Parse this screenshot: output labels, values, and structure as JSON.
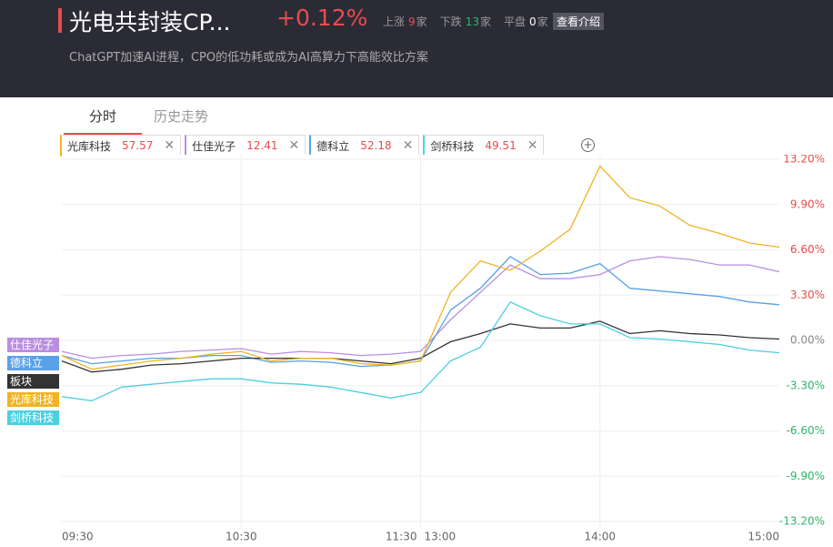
{
  "header": {
    "title": "光电共封装CP...",
    "change": "+0.12%",
    "stats": [
      {
        "label": "上涨",
        "count": 9,
        "unit": "家",
        "color": "#e84c4c"
      },
      {
        "label": "下跌",
        "count": 13,
        "unit": "家",
        "color": "#2fb36a"
      },
      {
        "label": "平盘",
        "count": 0,
        "unit": "家",
        "color": "#ffffff"
      }
    ],
    "button": "查看介绍",
    "subtitle": "ChatGPT加速AI进程，CPO的低功耗或成为AI高算力下高能效比方案"
  },
  "tabs": [
    "分时",
    "历史走势"
  ],
  "stock_tabs": [
    {
      "name": "光库科技",
      "price": "57.57"
    },
    {
      "name": "仕佳光子",
      "price": "12.41"
    },
    {
      "name": "德科立",
      "price": "52.18"
    },
    {
      "name": "剑桥科技",
      "price": "49.51"
    }
  ],
  "chart_data": {
    "type": "line",
    "x": [
      "09:30",
      "09:40",
      "09:50",
      "10:00",
      "10:10",
      "10:20",
      "10:30",
      "10:40",
      "10:50",
      "11:00",
      "11:10",
      "11:20",
      "11:30",
      "13:10",
      "13:20",
      "13:30",
      "13:40",
      "13:50",
      "14:00",
      "14:10",
      "14:20",
      "14:30",
      "14:40",
      "14:50",
      "15:00"
    ],
    "series": [
      {
        "name": "仕佳光子",
        "color": "#b98ee0",
        "values": [
          -0.8,
          -1.3,
          -1.1,
          -1.0,
          -0.8,
          -0.7,
          -0.6,
          -1.0,
          -0.8,
          -0.9,
          -1.1,
          -1.0,
          -0.8,
          1.5,
          3.5,
          5.5,
          4.5,
          4.5,
          4.8,
          5.8,
          6.1,
          5.9,
          5.5,
          5.5,
          5.0
        ]
      },
      {
        "name": "德科立",
        "color": "#5aa0e6",
        "values": [
          -1.1,
          -1.7,
          -1.5,
          -1.3,
          -1.3,
          -1.1,
          -1.1,
          -1.6,
          -1.5,
          -1.6,
          -1.9,
          -1.8,
          -1.5,
          2.2,
          3.8,
          6.1,
          4.8,
          4.9,
          5.6,
          3.8,
          3.6,
          3.4,
          3.2,
          2.8,
          2.6
        ]
      },
      {
        "name": "板块",
        "color": "#333333",
        "values": [
          -1.5,
          -2.3,
          -2.1,
          -1.8,
          -1.7,
          -1.5,
          -1.3,
          -1.3,
          -1.3,
          -1.3,
          -1.5,
          -1.7,
          -1.3,
          -0.1,
          0.5,
          1.2,
          0.9,
          0.9,
          1.4,
          0.5,
          0.7,
          0.5,
          0.4,
          0.2,
          0.1
        ]
      },
      {
        "name": "光库科技",
        "color": "#f0b323",
        "values": [
          -1.1,
          -2.1,
          -1.8,
          -1.5,
          -1.3,
          -1.0,
          -0.8,
          -1.5,
          -1.3,
          -1.3,
          -1.7,
          -1.8,
          -1.5,
          3.5,
          5.8,
          5.1,
          6.5,
          8.1,
          12.7,
          10.4,
          9.8,
          8.4,
          7.8,
          7.1,
          6.8
        ]
      },
      {
        "name": "剑桥科技",
        "color": "#4ccfe0",
        "values": [
          -4.1,
          -4.4,
          -3.4,
          -3.2,
          -3.0,
          -2.8,
          -2.8,
          -3.1,
          -3.2,
          -3.4,
          -3.8,
          -4.2,
          -3.8,
          -1.5,
          -0.5,
          2.8,
          1.8,
          1.2,
          1.2,
          0.2,
          0.1,
          -0.1,
          -0.3,
          -0.7,
          -0.9
        ]
      }
    ],
    "ylim": [
      -13.2,
      13.2
    ],
    "yticks": [
      {
        "value": 13.2,
        "label": "13.20%"
      },
      {
        "value": 9.9,
        "label": "9.90%"
      },
      {
        "value": 6.6,
        "label": "6.60%"
      },
      {
        "value": 3.3,
        "label": "3.30%"
      },
      {
        "value": 0,
        "label": "0.00%"
      },
      {
        "value": -3.3,
        "label": "-3.30%"
      },
      {
        "value": -6.6,
        "label": "-6.60%"
      },
      {
        "value": -9.9,
        "label": "-9.90%"
      },
      {
        "value": -13.2,
        "label": "-13.20%"
      }
    ],
    "xticks": [
      "09:30",
      "10:30",
      "11:30",
      "13:00",
      "14:00",
      "15:00"
    ],
    "grid": true
  }
}
